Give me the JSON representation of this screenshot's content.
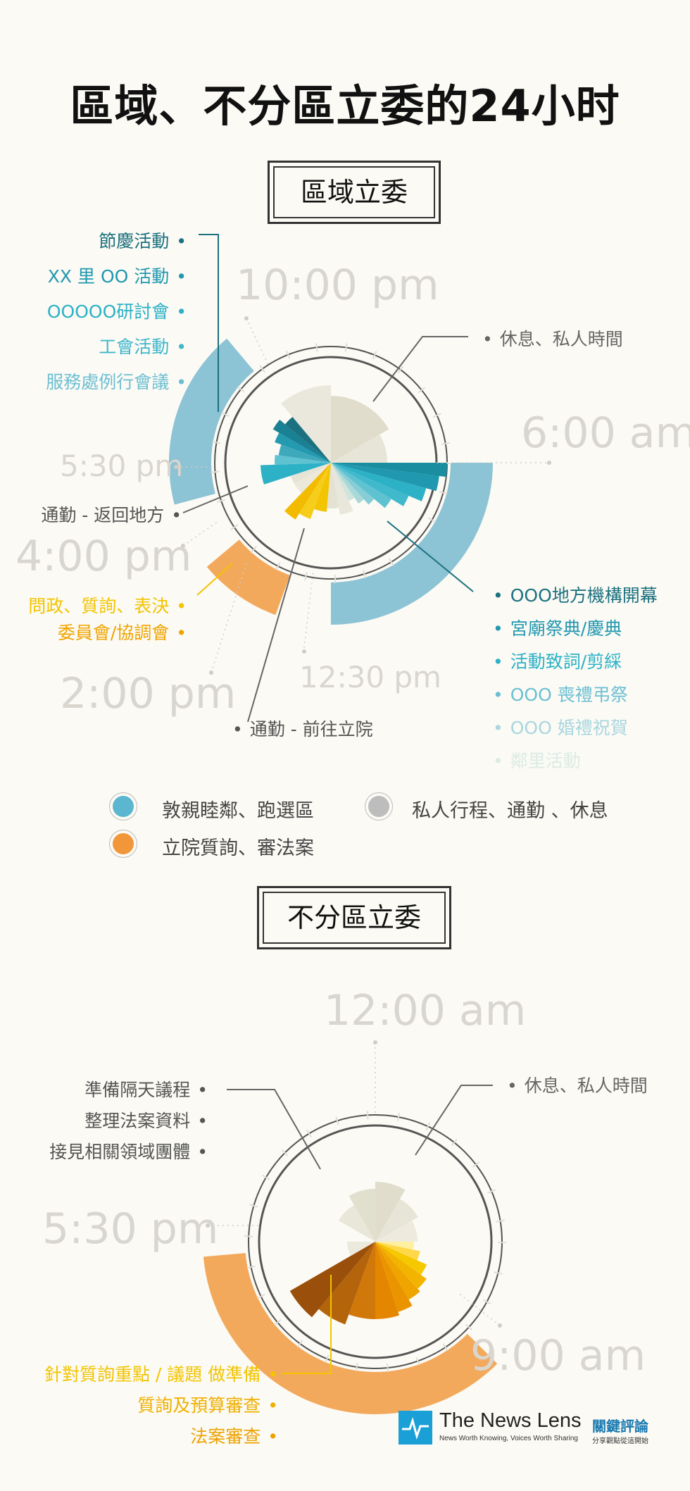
{
  "title": "區域、不分區立委的24小时",
  "colors": {
    "blue": "#8cc3d5",
    "orange": "#f3a95b",
    "grey": "#bdbdbd",
    "teal_dark": "#1c7180",
    "teal_mid": "#2cb1c6",
    "yellow": "#f3c400",
    "brown": "#9a4f0a"
  },
  "section1": {
    "heading": "區域立委",
    "times": {
      "t1": "10:00 pm",
      "t2": "6:00 am",
      "t3": "5:30 pm",
      "t4": "4:00 pm",
      "t5": "2:00 pm",
      "t6": "12:30 pm"
    },
    "labels_left_top": [
      "節慶活動",
      "XX 里 OO 活動",
      "OOOOO研討會",
      "工會活動",
      "服務處例行會議"
    ],
    "label_rest": "休息、私人時間",
    "label_commute_back": "通勤 - 返回地方",
    "labels_left_mid": [
      "問政、質詢、表決",
      "委員會/協調會"
    ],
    "labels_right_bottom": [
      "OOO地方機構開幕",
      "宮廟祭典/慶典",
      "活動致詞/剪綵",
      "OOO 喪禮弔祭",
      "OOO 婚禮祝賀",
      "鄰里活動"
    ],
    "label_commute_go": "通勤 - 前往立院"
  },
  "legend": {
    "item1": "敦親睦鄰、跑選區",
    "item2": "私人行程、通勤 、休息",
    "item3": "立院質詢、審法案"
  },
  "section2": {
    "heading": "不分區立委",
    "times": {
      "t1": "12:00 am",
      "t2": "5:30 pm",
      "t3": "9:00 am"
    },
    "labels_left_top": [
      "準備隔天議程",
      "整理法案資料",
      "接見相關領域團體"
    ],
    "label_rest": "休息、私人時間",
    "labels_left_bottom": [
      "針對質詢重點 / 議題 做準備",
      "質詢及預算審查",
      "法案審查"
    ]
  },
  "logo": {
    "name": "The News Lens",
    "cn": "關鍵評論",
    "tagline": "News Worth Knowing, Voices Worth Sharing",
    "tagline_cn": "分享觀點從這開始"
  }
}
